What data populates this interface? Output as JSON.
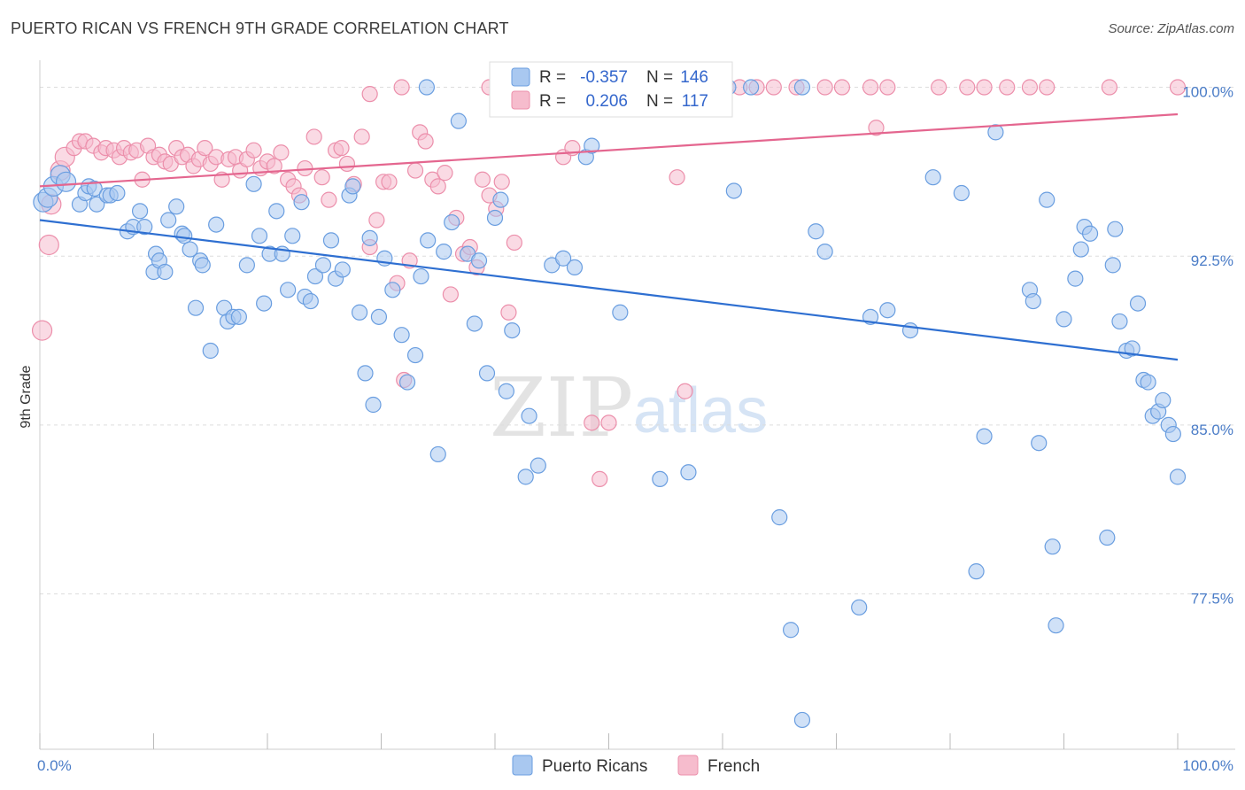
{
  "title": "PUERTO RICAN VS FRENCH 9TH GRADE CORRELATION CHART",
  "source": "Source: ZipAtlas.com",
  "watermark": {
    "zip": "ZIP",
    "atlas": "atlas"
  },
  "colors": {
    "blue_fill": "#a9c8f0",
    "blue_stroke": "#6a9ee0",
    "blue_line": "#2e6fd1",
    "pink_fill": "#f6bccd",
    "pink_stroke": "#ec8fab",
    "pink_line": "#e4668f",
    "grid": "#dddddd",
    "tick_text": "#4a7cc7"
  },
  "legend": {
    "r_label": "R =",
    "n_label": "N =",
    "rows": [
      {
        "r": "-0.357",
        "n": "146"
      },
      {
        "r": "0.206",
        "n": "117"
      }
    ]
  },
  "bottom_legend": [
    "Puerto Ricans",
    "French"
  ],
  "chart_data": {
    "type": "scatter",
    "title": "PUERTO RICAN VS FRENCH 9TH GRADE CORRELATION CHART",
    "xlabel": "",
    "ylabel": "9th Grade",
    "xlim": [
      0,
      100
    ],
    "ylim": [
      70.6,
      101.2
    ],
    "x_tick_labels": [
      "0.0%",
      "100.0%"
    ],
    "y_ticks": [
      77.5,
      85.0,
      92.5,
      100.0
    ],
    "y_tick_labels": [
      "77.5%",
      "85.0%",
      "92.5%",
      "100.0%"
    ],
    "grid": "horizontal dashed",
    "legend_placement": "top-center",
    "series": [
      {
        "name": "Puerto Ricans",
        "r": -0.357,
        "n": 146,
        "trend": {
          "x": [
            0,
            100
          ],
          "y": [
            94.1,
            87.9
          ]
        },
        "points": [
          [
            0.3,
            94.9
          ],
          [
            0.7,
            95.1
          ],
          [
            1.2,
            95.6
          ],
          [
            1.8,
            96.1
          ],
          [
            2.3,
            95.8
          ],
          [
            3.5,
            94.8
          ],
          [
            4.0,
            95.3
          ],
          [
            4.3,
            95.6
          ],
          [
            4.8,
            95.5
          ],
          [
            5.0,
            94.8
          ],
          [
            5.9,
            95.2
          ],
          [
            6.2,
            95.2
          ],
          [
            6.8,
            95.3
          ],
          [
            7.7,
            93.6
          ],
          [
            8.2,
            93.8
          ],
          [
            8.8,
            94.5
          ],
          [
            9.2,
            93.8
          ],
          [
            10.0,
            91.8
          ],
          [
            10.2,
            92.6
          ],
          [
            10.5,
            92.3
          ],
          [
            11.0,
            91.8
          ],
          [
            11.3,
            94.1
          ],
          [
            12.0,
            94.7
          ],
          [
            12.5,
            93.5
          ],
          [
            12.7,
            93.4
          ],
          [
            13.2,
            92.8
          ],
          [
            13.7,
            90.2
          ],
          [
            14.1,
            92.3
          ],
          [
            14.3,
            92.1
          ],
          [
            15.0,
            88.3
          ],
          [
            15.5,
            93.9
          ],
          [
            16.2,
            90.2
          ],
          [
            16.5,
            89.6
          ],
          [
            17.0,
            89.8
          ],
          [
            17.5,
            89.8
          ],
          [
            18.2,
            92.1
          ],
          [
            18.8,
            95.7
          ],
          [
            19.3,
            93.4
          ],
          [
            19.7,
            90.4
          ],
          [
            20.2,
            92.6
          ],
          [
            20.8,
            94.5
          ],
          [
            21.3,
            92.6
          ],
          [
            21.8,
            91.0
          ],
          [
            22.2,
            93.4
          ],
          [
            23.0,
            94.9
          ],
          [
            23.3,
            90.7
          ],
          [
            23.8,
            90.5
          ],
          [
            24.2,
            91.6
          ],
          [
            24.9,
            92.1
          ],
          [
            25.6,
            93.2
          ],
          [
            26.0,
            91.5
          ],
          [
            26.6,
            91.9
          ],
          [
            27.2,
            95.2
          ],
          [
            27.5,
            95.6
          ],
          [
            28.1,
            90.0
          ],
          [
            28.6,
            87.3
          ],
          [
            29.0,
            93.3
          ],
          [
            29.3,
            85.9
          ],
          [
            29.8,
            89.8
          ],
          [
            30.3,
            92.4
          ],
          [
            31.0,
            91.0
          ],
          [
            31.8,
            89.0
          ],
          [
            32.3,
            86.9
          ],
          [
            33.0,
            88.1
          ],
          [
            33.5,
            91.6
          ],
          [
            34.1,
            93.2
          ],
          [
            35.0,
            83.7
          ],
          [
            35.5,
            92.7
          ],
          [
            36.2,
            94.0
          ],
          [
            36.8,
            98.5
          ],
          [
            37.6,
            92.6
          ],
          [
            38.2,
            89.5
          ],
          [
            38.6,
            92.3
          ],
          [
            39.3,
            87.3
          ],
          [
            40.0,
            94.2
          ],
          [
            40.5,
            95.0
          ],
          [
            41.0,
            86.5
          ],
          [
            41.5,
            89.2
          ],
          [
            42.7,
            82.7
          ],
          [
            43.0,
            85.4
          ],
          [
            43.8,
            83.2
          ],
          [
            45.0,
            92.1
          ],
          [
            46.0,
            92.4
          ],
          [
            47.0,
            92.0
          ],
          [
            48.0,
            96.9
          ],
          [
            48.5,
            97.4
          ],
          [
            51.0,
            90.0
          ],
          [
            54.5,
            82.6
          ],
          [
            57.0,
            82.9
          ],
          [
            61.0,
            95.4
          ],
          [
            65.0,
            80.9
          ],
          [
            66.0,
            75.9
          ],
          [
            67.0,
            71.9
          ],
          [
            68.2,
            93.6
          ],
          [
            69.0,
            92.7
          ],
          [
            72.0,
            76.9
          ],
          [
            73.0,
            89.8
          ],
          [
            74.5,
            90.1
          ],
          [
            76.5,
            89.2
          ],
          [
            78.5,
            96.0
          ],
          [
            81.0,
            95.3
          ],
          [
            82.3,
            78.5
          ],
          [
            83.0,
            84.5
          ],
          [
            84.0,
            98.0
          ],
          [
            87.0,
            91.0
          ],
          [
            87.3,
            90.5
          ],
          [
            87.8,
            84.2
          ],
          [
            88.5,
            95.0
          ],
          [
            89.0,
            79.6
          ],
          [
            89.3,
            76.1
          ],
          [
            90.0,
            89.7
          ],
          [
            91.0,
            91.5
          ],
          [
            91.5,
            92.8
          ],
          [
            91.8,
            93.8
          ],
          [
            92.3,
            93.5
          ],
          [
            93.8,
            80.0
          ],
          [
            94.3,
            92.1
          ],
          [
            94.5,
            93.7
          ],
          [
            94.9,
            89.6
          ],
          [
            95.5,
            88.3
          ],
          [
            96.0,
            88.4
          ],
          [
            96.5,
            90.4
          ],
          [
            97.0,
            87.0
          ],
          [
            97.4,
            86.9
          ],
          [
            97.8,
            85.4
          ],
          [
            98.3,
            85.6
          ],
          [
            98.7,
            86.1
          ],
          [
            99.2,
            85.0
          ],
          [
            99.6,
            84.6
          ],
          [
            100.0,
            82.7
          ],
          [
            34.0,
            100.0
          ],
          [
            60.5,
            100.0
          ],
          [
            62.5,
            100.0
          ],
          [
            67.0,
            100.0
          ],
          [
            47.5,
            100.0
          ]
        ]
      },
      {
        "name": "French",
        "r": 0.206,
        "n": 117,
        "trend": {
          "x": [
            0,
            100
          ],
          "y": [
            95.6,
            98.8
          ]
        },
        "points": [
          [
            0.2,
            89.2
          ],
          [
            0.8,
            93.0
          ],
          [
            1.0,
            94.8
          ],
          [
            1.8,
            96.3
          ],
          [
            2.2,
            96.9
          ],
          [
            3.0,
            97.3
          ],
          [
            3.5,
            97.6
          ],
          [
            4.0,
            97.6
          ],
          [
            4.7,
            97.4
          ],
          [
            5.4,
            97.1
          ],
          [
            5.8,
            97.3
          ],
          [
            6.5,
            97.2
          ],
          [
            7.0,
            96.9
          ],
          [
            7.4,
            97.3
          ],
          [
            8.0,
            97.1
          ],
          [
            8.5,
            97.2
          ],
          [
            9.0,
            95.9
          ],
          [
            9.5,
            97.4
          ],
          [
            10.0,
            96.9
          ],
          [
            10.5,
            97.0
          ],
          [
            11.0,
            96.7
          ],
          [
            11.5,
            96.6
          ],
          [
            12.0,
            97.3
          ],
          [
            12.5,
            96.9
          ],
          [
            13.0,
            97.0
          ],
          [
            13.5,
            96.5
          ],
          [
            14.0,
            96.8
          ],
          [
            14.5,
            97.3
          ],
          [
            15.0,
            96.6
          ],
          [
            15.5,
            96.9
          ],
          [
            16.0,
            95.9
          ],
          [
            16.6,
            96.8
          ],
          [
            17.2,
            96.9
          ],
          [
            17.6,
            96.3
          ],
          [
            18.2,
            96.8
          ],
          [
            18.8,
            97.2
          ],
          [
            19.4,
            96.4
          ],
          [
            20.0,
            96.7
          ],
          [
            20.6,
            96.5
          ],
          [
            21.2,
            97.1
          ],
          [
            21.8,
            95.9
          ],
          [
            22.3,
            95.6
          ],
          [
            22.8,
            95.2
          ],
          [
            23.3,
            96.4
          ],
          [
            24.1,
            97.8
          ],
          [
            24.8,
            96.0
          ],
          [
            25.4,
            95.0
          ],
          [
            26.0,
            97.2
          ],
          [
            26.5,
            97.3
          ],
          [
            27.0,
            96.6
          ],
          [
            27.6,
            95.7
          ],
          [
            28.3,
            97.8
          ],
          [
            29.0,
            92.9
          ],
          [
            29.6,
            94.1
          ],
          [
            30.2,
            95.8
          ],
          [
            30.7,
            95.8
          ],
          [
            31.4,
            91.3
          ],
          [
            32.0,
            87.0
          ],
          [
            32.5,
            92.3
          ],
          [
            33.0,
            96.3
          ],
          [
            33.4,
            98.0
          ],
          [
            33.9,
            97.6
          ],
          [
            34.5,
            95.9
          ],
          [
            35.0,
            95.6
          ],
          [
            35.6,
            96.2
          ],
          [
            36.1,
            90.8
          ],
          [
            36.6,
            94.2
          ],
          [
            37.2,
            92.6
          ],
          [
            37.8,
            92.9
          ],
          [
            38.4,
            92.0
          ],
          [
            38.9,
            95.9
          ],
          [
            39.5,
            95.2
          ],
          [
            40.1,
            94.6
          ],
          [
            40.6,
            95.8
          ],
          [
            41.2,
            90.0
          ],
          [
            41.7,
            93.1
          ],
          [
            46.0,
            96.9
          ],
          [
            46.8,
            97.3
          ],
          [
            48.5,
            85.1
          ],
          [
            49.2,
            82.6
          ],
          [
            50.0,
            85.1
          ],
          [
            56.0,
            96.0
          ],
          [
            56.7,
            86.5
          ],
          [
            73.5,
            98.2
          ],
          [
            29.0,
            99.7
          ],
          [
            31.8,
            100.0
          ],
          [
            39.5,
            100.0
          ],
          [
            41.5,
            100.0
          ],
          [
            43.0,
            100.0
          ],
          [
            44.5,
            100.0
          ],
          [
            46.0,
            100.0
          ],
          [
            47.0,
            100.0
          ],
          [
            50.5,
            100.0
          ],
          [
            51.5,
            100.0
          ],
          [
            52.0,
            100.0
          ],
          [
            53.0,
            100.0
          ],
          [
            55.0,
            100.0
          ],
          [
            57.0,
            100.0
          ],
          [
            59.0,
            100.0
          ],
          [
            61.5,
            100.0
          ],
          [
            63.0,
            100.0
          ],
          [
            64.5,
            100.0
          ],
          [
            66.5,
            100.0
          ],
          [
            69.0,
            100.0
          ],
          [
            70.5,
            100.0
          ],
          [
            73.0,
            100.0
          ],
          [
            74.5,
            100.0
          ],
          [
            79.0,
            100.0
          ],
          [
            81.5,
            100.0
          ],
          [
            83.0,
            100.0
          ],
          [
            85.0,
            100.0
          ],
          [
            87.0,
            100.0
          ],
          [
            88.5,
            100.0
          ],
          [
            94.0,
            100.0
          ],
          [
            100.0,
            100.0
          ]
        ]
      }
    ]
  }
}
